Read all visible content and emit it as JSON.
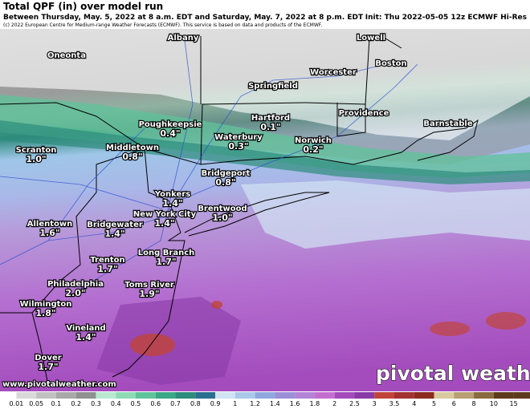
{
  "header": {
    "title": "Total QPF (in) over model run",
    "subtitle": "Between Thursday, May. 5, 2022 at 8 a.m. EDT and Saturday, May. 7, 2022 at 8 p.m. EDT",
    "init": "Init: Thu 2022-05-05 12z ECMWF Hi-Res",
    "copyright": "(c) 2022 European Centre for Medium-range Weather Forecasts (ECMWF). This service is based on data and products of the ECMWF."
  },
  "cities": [
    {
      "name": "Albany"
    },
    {
      "name": "Oneonta"
    },
    {
      "name": "Lowell"
    },
    {
      "name": "Boston"
    },
    {
      "name": "Springfield"
    },
    {
      "name": "Worcester"
    },
    {
      "name": "Providence"
    },
    {
      "name": "Barnstable"
    },
    {
      "name": "Hartford",
      "amount": "0.1\""
    },
    {
      "name": "Poughkeepsie",
      "amount": "0.4\""
    },
    {
      "name": "Waterbury",
      "amount": "0.3\""
    },
    {
      "name": "Norwich",
      "amount": "0.2\""
    },
    {
      "name": "Scranton",
      "amount": "1.0\""
    },
    {
      "name": "Middletown",
      "amount": "0.8\""
    },
    {
      "name": "Bridgeport",
      "amount": "0.8\""
    },
    {
      "name": "Yonkers",
      "amount": "1.4\""
    },
    {
      "name": "New York City",
      "amount": "1.4\""
    },
    {
      "name": "Brentwood",
      "amount": "1.0\""
    },
    {
      "name": "Allentown",
      "amount": "1.6\""
    },
    {
      "name": "Bridgewater",
      "amount": "1.4\""
    },
    {
      "name": "Long Branch",
      "amount": "1.7\""
    },
    {
      "name": "Trenton",
      "amount": "1.7\""
    },
    {
      "name": "Philadelphia",
      "amount": "2.0\""
    },
    {
      "name": "Toms River",
      "amount": "1.9\""
    },
    {
      "name": "Wilmington",
      "amount": "1.8\""
    },
    {
      "name": "Vineland",
      "amount": "1.4\""
    },
    {
      "name": "Dover",
      "amount": "1.7\""
    }
  ],
  "watermark": {
    "brand": "pivotal weather",
    "url": "www.pivotalweather.com"
  },
  "colorbar": {
    "labels": [
      "0.01",
      "0.05",
      "0.1",
      "0.2",
      "0.3",
      "0.4",
      "0.5",
      "0.6",
      "0.7",
      "0.8",
      "0.9",
      "1",
      "1.2",
      "1.4",
      "1.6",
      "1.8",
      "2",
      "2.5",
      "3",
      "3.5",
      "4",
      "5",
      "6",
      "8",
      "10",
      "15"
    ],
    "colors": [
      "#f0f0f0",
      "#d9d9d9",
      "#c0c0c0",
      "#a8a8a8",
      "#909090",
      "#b8e8d0",
      "#8fdab6",
      "#5fc39a",
      "#3aa886",
      "#2e8c7c",
      "#2b6f90",
      "#cfe3f2",
      "#a9c9e8",
      "#8fa8df",
      "#9b8fd8",
      "#b283d6",
      "#c46fd0",
      "#a44cbd",
      "#8a3aa8",
      "#c1443a",
      "#a33232",
      "#8b2a1f",
      "#d9c9a0",
      "#b89f70",
      "#8a6a40",
      "#5e3a1c"
    ]
  }
}
